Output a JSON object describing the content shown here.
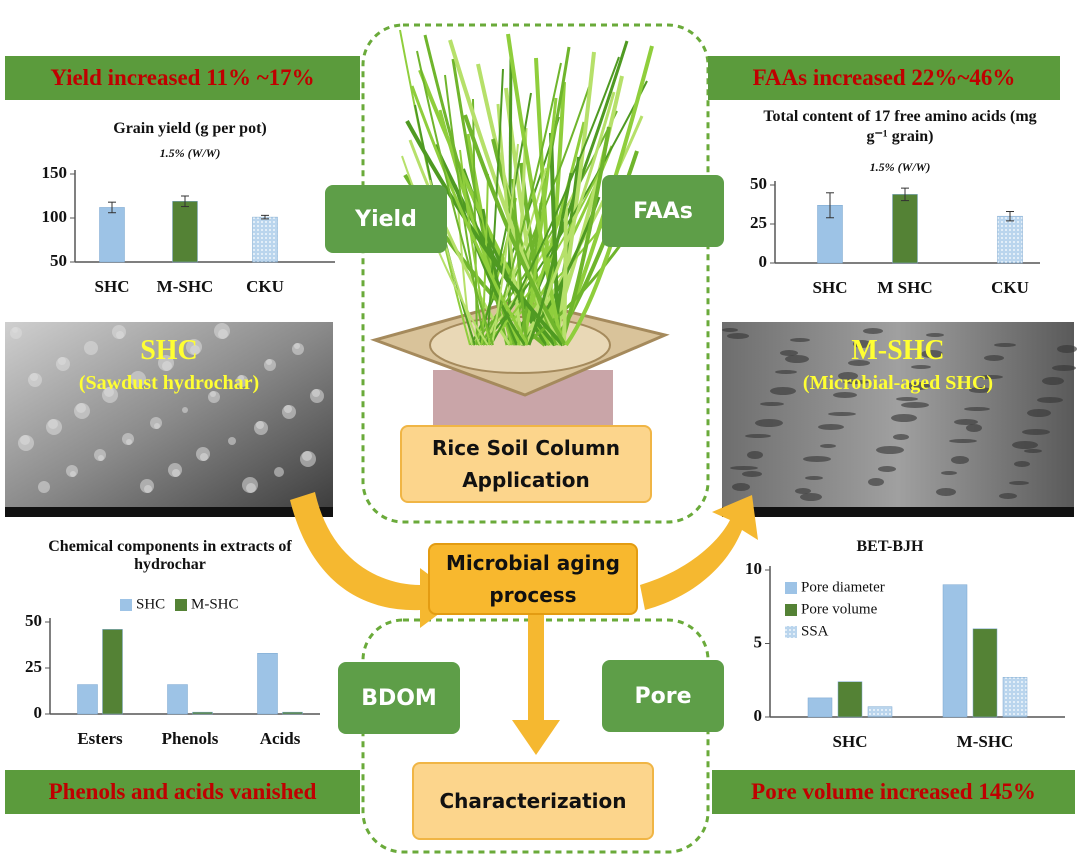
{
  "banners": [
    "Yield increased 11% ~17%",
    "FAAs increased 22%~46%",
    "Phenols and acids vanished",
    "Pore volume increased 145%"
  ],
  "labels": {
    "yield": "Yield",
    "faas": "FAAs",
    "bdom": "BDOM",
    "pore": "Pore"
  },
  "boxes": {
    "application": "Rice Soil Column Application",
    "aging": "Microbial aging process",
    "characterization": "Characterization"
  },
  "images": [
    {
      "title": "SHC",
      "caption": "(Sawdust hydrochar)"
    },
    {
      "title": "M-SHC",
      "caption": "(Microbial-aged SHC)"
    }
  ],
  "chart_data": [
    {
      "type": "bar",
      "title": "Grain yield (g per pot)",
      "subtitle": "1.5% (W/W)",
      "categories": [
        "SHC",
        "M-SHC",
        "CKU"
      ],
      "values": [
        112,
        119,
        101
      ],
      "errors": [
        6,
        6,
        2
      ],
      "colors": [
        "#9dc3e6",
        "#548235",
        "#9dc3e6"
      ],
      "patterns": [
        "solid",
        "solid",
        "dotted"
      ],
      "ylim": [
        50,
        150
      ],
      "yticks": [
        50,
        100,
        150
      ]
    },
    {
      "type": "bar",
      "title": "Total content of 17 free amino acids (mg g⁻¹ grain)",
      "subtitle": "1.5% (W/W)",
      "categories": [
        "SHC",
        "M SHC",
        "CKU"
      ],
      "values": [
        37,
        44,
        30
      ],
      "errors": [
        8,
        4,
        3
      ],
      "colors": [
        "#9dc3e6",
        "#548235",
        "#9dc3e6"
      ],
      "patterns": [
        "solid",
        "solid",
        "dotted"
      ],
      "ylim": [
        0,
        50
      ],
      "yticks": [
        0,
        25,
        50
      ]
    },
    {
      "type": "bar",
      "title": "Chemical components in extracts of hydrochar",
      "categories": [
        "Esters",
        "Phenols",
        "Acids"
      ],
      "series": [
        {
          "name": "SHC",
          "color": "#9dc3e6",
          "pattern": "solid",
          "values": [
            16,
            16,
            33
          ]
        },
        {
          "name": "M-SHC",
          "color": "#548235",
          "pattern": "solid",
          "values": [
            46,
            1,
            1
          ]
        }
      ],
      "legend": "top",
      "ylim": [
        0,
        50
      ],
      "yticks": [
        0,
        25,
        50
      ]
    },
    {
      "type": "bar",
      "title": "BET-BJH",
      "categories": [
        "SHC",
        "M-SHC"
      ],
      "series": [
        {
          "name": "Pore diameter",
          "color": "#9dc3e6",
          "pattern": "solid",
          "values": [
            1.3,
            9
          ]
        },
        {
          "name": "Pore volume",
          "color": "#548235",
          "pattern": "solid",
          "values": [
            2.4,
            6
          ]
        },
        {
          "name": "SSA",
          "color": "#9dc3e6",
          "pattern": "dotted",
          "values": [
            0.7,
            2.7
          ]
        }
      ],
      "legend": "upper left",
      "ylim": [
        0,
        10
      ],
      "yticks": [
        0,
        5,
        10
      ]
    }
  ]
}
